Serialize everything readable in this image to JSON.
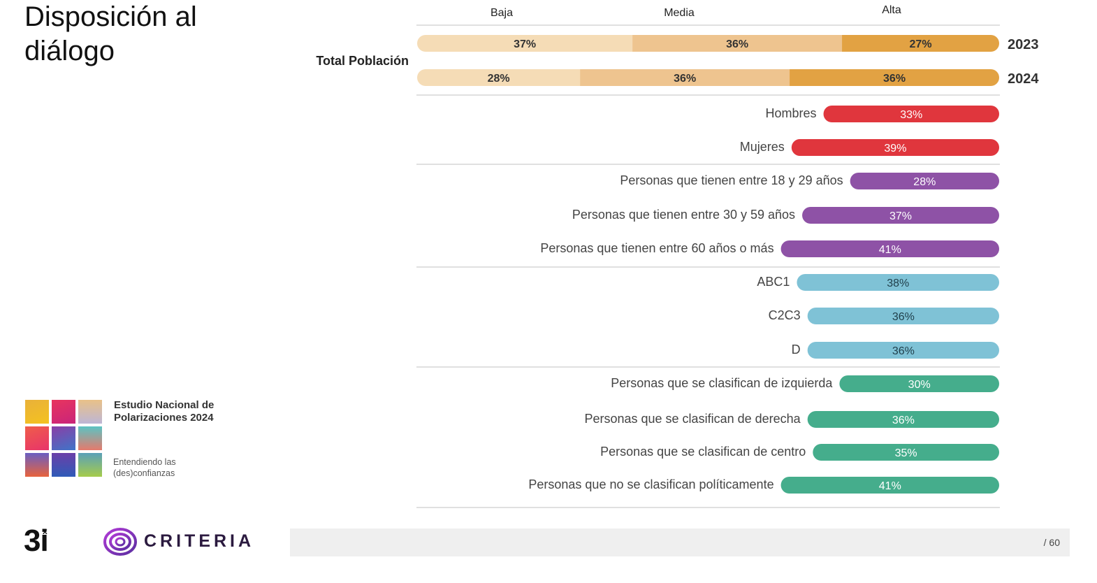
{
  "page": {
    "title": "Disposición al diálogo",
    "study_title": "Estudio Nacional de Polarizaciones 2024",
    "study_subtitle": "Entendiendo las (des)confianzas",
    "brand_3i": "3i",
    "brand_3i_mark": "x",
    "brand_criteria": "CRITERIA",
    "page_number": "/ 60"
  },
  "colors": {
    "baja": "#f5dcb6",
    "media": "#eec48f",
    "alta": "#e2a243",
    "sexo": "#e0363d",
    "edad": "#8e52a6",
    "gse": "#7fc2d6",
    "politica": "#45ad8c"
  },
  "chart_data": {
    "type": "bar",
    "stacked": {
      "row_label": "Total Población",
      "categories": [
        "Baja",
        "Media",
        "Alta"
      ],
      "series": [
        {
          "name": "2023",
          "values": [
            37,
            36,
            27
          ],
          "labels": [
            "37%",
            "36%",
            "27%"
          ]
        },
        {
          "name": "2024",
          "values": [
            28,
            36,
            36
          ],
          "labels": [
            "28%",
            "36%",
            "36%"
          ]
        }
      ]
    },
    "segments": [
      {
        "group": "sexo",
        "rows": [
          {
            "label": "Hombres",
            "value": 33,
            "value_label": "33%"
          },
          {
            "label": "Mujeres",
            "value": 39,
            "value_label": "39%"
          }
        ]
      },
      {
        "group": "edad",
        "rows": [
          {
            "label": "Personas que tienen entre 18 y 29 años",
            "value": 28,
            "value_label": "28%"
          },
          {
            "label": "Personas que tienen entre 30 y 59 años",
            "value": 37,
            "value_label": "37%"
          },
          {
            "label": "Personas que tienen entre 60 años o más",
            "value": 41,
            "value_label": "41%"
          }
        ]
      },
      {
        "group": "gse",
        "rows": [
          {
            "label": "ABC1",
            "value": 38,
            "value_label": "38%"
          },
          {
            "label": "C2C3",
            "value": 36,
            "value_label": "36%"
          },
          {
            "label": "D",
            "value": 36,
            "value_label": "36%"
          }
        ]
      },
      {
        "group": "politica",
        "rows": [
          {
            "label": "Personas que se clasifican de izquierda",
            "value": 30,
            "value_label": "30%"
          },
          {
            "label": "Personas que se clasifican de derecha",
            "value": 36,
            "value_label": "36%"
          },
          {
            "label": "Personas que se clasifican de centro",
            "value": 35,
            "value_label": "35%"
          },
          {
            "label": "Personas que no se clasifican políticamente",
            "value": 41,
            "value_label": "41%"
          }
        ]
      }
    ],
    "xlim": [
      0,
      100
    ]
  }
}
